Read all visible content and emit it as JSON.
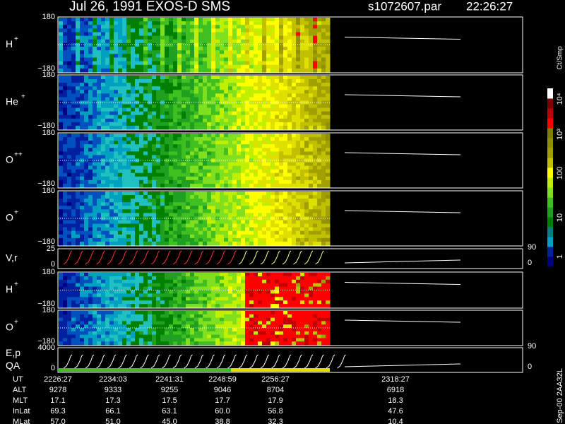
{
  "chart_data": {
    "type": "spectrogram",
    "title": "Jul 26, 1991   EXOS-D SMS",
    "file": "s1072607.par",
    "time": "22:26:27",
    "panels": [
      {
        "label": "H",
        "charge": "+",
        "top": "180",
        "bottom": "−180"
      },
      {
        "label": "He",
        "charge": "+",
        "top": "180",
        "bottom": "−180"
      },
      {
        "label": "O",
        "charge": "++",
        "top": "180",
        "bottom": "−180"
      },
      {
        "label": "O",
        "charge": "+",
        "top": "180",
        "bottom": "−180"
      },
      {
        "label": "V,r",
        "top": "25",
        "bottom": "0",
        "right_top": "90",
        "right_bottom": "0"
      },
      {
        "label": "H",
        "charge": "+",
        "top": "180",
        "bottom": "−180"
      },
      {
        "label": "O",
        "charge": "+",
        "top": "180",
        "bottom": "−180"
      },
      {
        "label": "E,p",
        "label2": "QA",
        "top": "4000",
        "bottom": "0",
        "right_top": "90",
        "right_bottom": "0"
      }
    ],
    "colorbar": {
      "unit": "Ct/Smp",
      "ticks": [
        "10⁴",
        "10³",
        "100",
        "10",
        "1"
      ]
    },
    "footer": "Sep-00  2AA32L",
    "ephemeris": [
      {
        "name": "UT",
        "values": [
          "2226:27",
          "2234:03",
          "2241:31",
          "2248:59",
          "2256:27",
          "2318:27"
        ]
      },
      {
        "name": "ALT",
        "values": [
          "9278",
          "9333",
          "9255",
          "9046",
          "8704",
          "6918"
        ]
      },
      {
        "name": "MLT",
        "values": [
          "17.1",
          "17.3",
          "17.5",
          "17.7",
          "17.9",
          "18.3"
        ]
      },
      {
        "name": "InLat",
        "values": [
          "69.3",
          "66.1",
          "63.1",
          "60.0",
          "56.8",
          "47.6"
        ]
      },
      {
        "name": "MLat",
        "values": [
          "57.0",
          "51.0",
          "45.0",
          "38.8",
          "32.3",
          "10.4"
        ]
      }
    ]
  }
}
